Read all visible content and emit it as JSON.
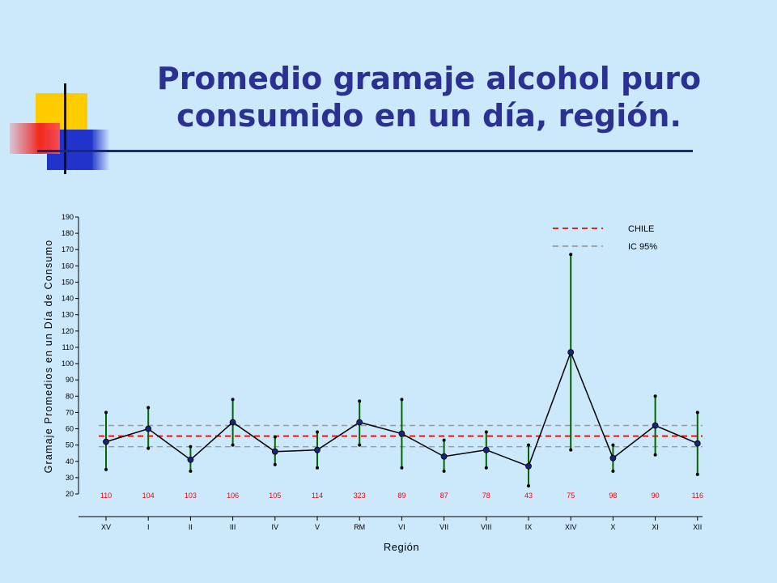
{
  "slide": {
    "title_line1": "Promedio gramaje alcohol puro",
    "title_line2": "consumido en un día, región."
  },
  "colors": {
    "background": "#cce8fb",
    "title": "#2b3192",
    "national_line": "#ff0000",
    "ci_line": "#999999",
    "error_bar": "#006600",
    "mean_line": "#000000",
    "marker": "#1a237e",
    "n_text": "#ff0000"
  },
  "chart_data": {
    "type": "line",
    "xlabel": "Región",
    "ylabel": "Gramaje Promedios en un Día de Consumo",
    "ylim": [
      20,
      190
    ],
    "yticks": [
      20,
      30,
      40,
      50,
      60,
      70,
      80,
      90,
      100,
      110,
      120,
      130,
      140,
      150,
      160,
      170,
      180,
      190
    ],
    "categories": [
      "XV",
      "I",
      "II",
      "III",
      "IV",
      "V",
      "RM",
      "VI",
      "VII",
      "VIII",
      "IX",
      "XIV",
      "X",
      "XI",
      "XII"
    ],
    "n": [
      "110",
      "104",
      "103",
      "106",
      "105",
      "114",
      "323",
      "89",
      "87",
      "78",
      "43",
      "75",
      "98",
      "90",
      "116"
    ],
    "series": [
      {
        "values": [
          52,
          60,
          41,
          64,
          46,
          47,
          64,
          57,
          43,
          47,
          37,
          107,
          42,
          62,
          51
        ]
      }
    ],
    "ci_upper": [
      70,
      73,
      49,
      78,
      55,
      58,
      77,
      78,
      53,
      58,
      50,
      167,
      50,
      80,
      70
    ],
    "ci_lower": [
      35,
      48,
      34,
      50,
      38,
      36,
      50,
      36,
      34,
      36,
      25,
      47,
      34,
      44,
      32
    ],
    "reference_lines": [
      {
        "name": "CHILE",
        "value": 55.5,
        "style": "dashed",
        "color": "#ff0000"
      },
      {
        "name": "IC 95%",
        "value": 62,
        "style": "dashed",
        "color": "#999999"
      },
      {
        "name": "IC 95%",
        "value": 49,
        "style": "dashed",
        "color": "#999999"
      }
    ],
    "legend": [
      "CHILE",
      "IC 95%"
    ],
    "legend_position": "top-right",
    "grid": false
  }
}
